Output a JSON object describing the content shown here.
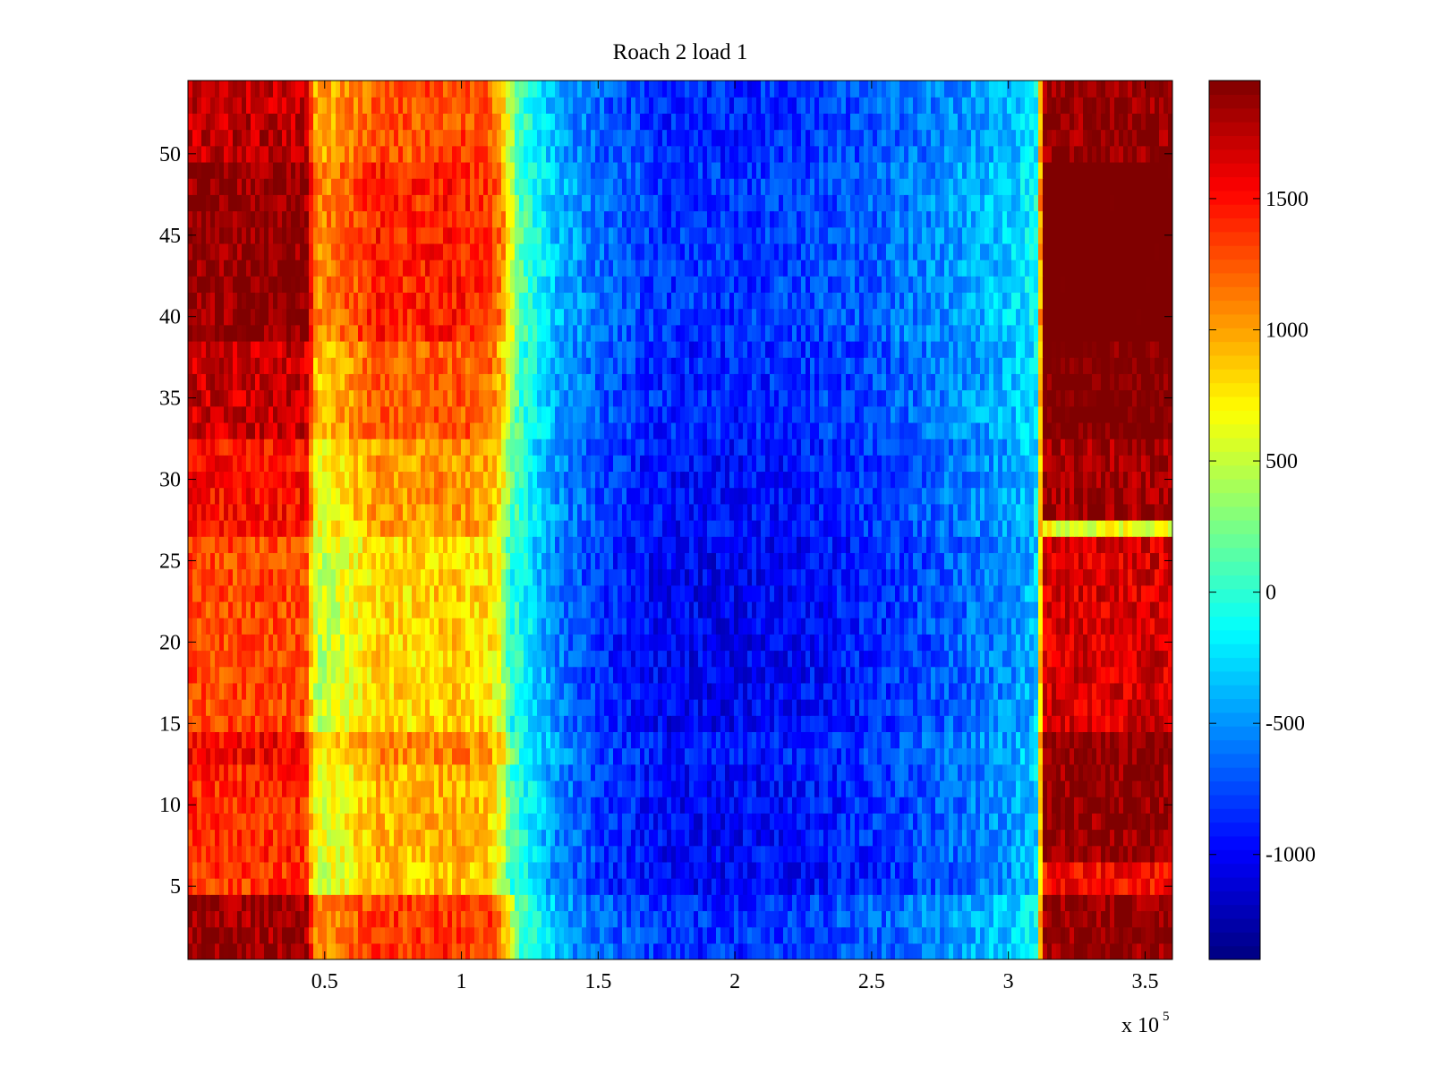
{
  "chart_data": {
    "type": "heatmap",
    "title": "Roach 2 load 1",
    "xlabel": "",
    "ylabel": "",
    "x_range": [
      0,
      360000
    ],
    "y_range": [
      0.5,
      54.5
    ],
    "rows": 54,
    "x_ticks": [
      {
        "value": 50000,
        "label": "0.5"
      },
      {
        "value": 100000,
        "label": "1"
      },
      {
        "value": 150000,
        "label": "1.5"
      },
      {
        "value": 200000,
        "label": "2"
      },
      {
        "value": 250000,
        "label": "2.5"
      },
      {
        "value": 300000,
        "label": "3"
      },
      {
        "value": 350000,
        "label": "3.5"
      }
    ],
    "x_exponent": {
      "base": "x 10",
      "power": "5"
    },
    "y_ticks": [
      {
        "value": 5,
        "label": "5"
      },
      {
        "value": 10,
        "label": "10"
      },
      {
        "value": 15,
        "label": "15"
      },
      {
        "value": 20,
        "label": "20"
      },
      {
        "value": 25,
        "label": "25"
      },
      {
        "value": 30,
        "label": "30"
      },
      {
        "value": 35,
        "label": "35"
      },
      {
        "value": 40,
        "label": "40"
      },
      {
        "value": 45,
        "label": "45"
      },
      {
        "value": 50,
        "label": "50"
      }
    ],
    "colorbar": {
      "colormap": "jet",
      "range": [
        -1400,
        1950
      ],
      "ticks": [
        {
          "value": -1000,
          "label": "-1000"
        },
        {
          "value": -500,
          "label": "-500"
        },
        {
          "value": 0,
          "label": "0"
        },
        {
          "value": 500,
          "label": "500"
        },
        {
          "value": 1000,
          "label": "1000"
        },
        {
          "value": 1500,
          "label": "1500"
        }
      ]
    },
    "column_profile": [
      {
        "x": 0,
        "value": 1500
      },
      {
        "x": 43000,
        "value": 1500
      },
      {
        "x": 47000,
        "value": 650
      },
      {
        "x": 60000,
        "value": 850
      },
      {
        "x": 70000,
        "value": 1050
      },
      {
        "x": 80000,
        "value": 1000
      },
      {
        "x": 90000,
        "value": 1050
      },
      {
        "x": 100000,
        "value": 1050
      },
      {
        "x": 110000,
        "value": 1000
      },
      {
        "x": 115000,
        "value": 700
      },
      {
        "x": 118000,
        "value": 150
      },
      {
        "x": 125000,
        "value": -150
      },
      {
        "x": 135000,
        "value": -500
      },
      {
        "x": 150000,
        "value": -750
      },
      {
        "x": 175000,
        "value": -950
      },
      {
        "x": 200000,
        "value": -950
      },
      {
        "x": 225000,
        "value": -900
      },
      {
        "x": 250000,
        "value": -800
      },
      {
        "x": 280000,
        "value": -600
      },
      {
        "x": 300000,
        "value": -450
      },
      {
        "x": 310000,
        "value": -300
      },
      {
        "x": 313000,
        "value": 1750
      },
      {
        "x": 360000,
        "value": 1750
      }
    ],
    "row_bands": [
      {
        "y_from": 0.5,
        "y_to": 4.5,
        "left": 350,
        "right": 150
      },
      {
        "y_from": 4.5,
        "y_to": 6.5,
        "left": -150,
        "right": -250
      },
      {
        "y_from": 6.5,
        "y_to": 12.5,
        "left": -100,
        "right": 150
      },
      {
        "y_from": 12.5,
        "y_to": 14.5,
        "left": 50,
        "right": 200
      },
      {
        "y_from": 14.5,
        "y_to": 26.5,
        "left": -200,
        "right": -100
      },
      {
        "y_from": 26.5,
        "y_to": 27.5,
        "left": -50,
        "right": -1100
      },
      {
        "y_from": 27.5,
        "y_to": 32.5,
        "left": 0,
        "right": 100
      },
      {
        "y_from": 32.5,
        "y_to": 38.5,
        "left": 200,
        "right": 250
      },
      {
        "y_from": 38.5,
        "y_to": 49.5,
        "left": 400,
        "right": 400
      },
      {
        "y_from": 49.5,
        "y_to": 54.5,
        "left": 250,
        "right": 150
      }
    ]
  }
}
